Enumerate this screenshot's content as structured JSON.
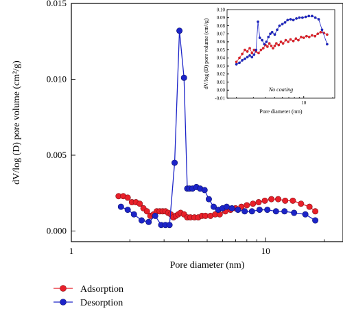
{
  "chart_data": [
    {
      "type": "line",
      "x_scale": "log",
      "xlabel": "Pore diameter (nm)",
      "ylabel": "dV/log (D) pore volume (cm²/g)",
      "xlim": [
        1,
        25
      ],
      "ylim": [
        -0.0007,
        0.015
      ],
      "x_ticks": [
        1,
        10
      ],
      "x_tick_labels": [
        "1",
        "10"
      ],
      "y_ticks": [
        0.0,
        0.005,
        0.01,
        0.015
      ],
      "y_tick_labels": [
        "0.000",
        "0.005",
        "0.010",
        "0.015"
      ],
      "legend_position": "bottom-left",
      "series": [
        {
          "name": "Adsorption",
          "color": "#e8202a",
          "x": [
            1.75,
            1.85,
            1.95,
            2.05,
            2.15,
            2.25,
            2.35,
            2.45,
            2.55,
            2.65,
            2.75,
            2.85,
            2.95,
            3.05,
            3.15,
            3.25,
            3.35,
            3.45,
            3.55,
            3.65,
            3.8,
            3.95,
            4.1,
            4.3,
            4.5,
            4.7,
            4.9,
            5.2,
            5.5,
            5.8,
            6.2,
            6.6,
            7.0,
            7.5,
            8.0,
            8.6,
            9.2,
            9.9,
            10.7,
            11.6,
            12.6,
            13.8,
            15.2,
            16.8,
            18.0
          ],
          "y": [
            0.0023,
            0.0023,
            0.0022,
            0.0019,
            0.0019,
            0.0018,
            0.0015,
            0.0013,
            0.001,
            0.0011,
            0.0013,
            0.0013,
            0.0013,
            0.0013,
            0.0012,
            0.0011,
            0.0009,
            0.001,
            0.0011,
            0.0012,
            0.0011,
            0.0009,
            0.0009,
            0.0009,
            0.0009,
            0.001,
            0.001,
            0.001,
            0.0011,
            0.0011,
            0.0013,
            0.0014,
            0.0015,
            0.0016,
            0.0017,
            0.0018,
            0.0019,
            0.002,
            0.0021,
            0.0021,
            0.002,
            0.002,
            0.0018,
            0.0016,
            0.0013
          ]
        },
        {
          "name": "Desorption",
          "color": "#1c24c8",
          "x": [
            1.8,
            1.95,
            2.1,
            2.3,
            2.5,
            2.7,
            2.9,
            3.05,
            3.2,
            3.4,
            3.6,
            3.8,
            3.95,
            4.05,
            4.2,
            4.4,
            4.6,
            4.85,
            5.1,
            5.4,
            5.7,
            6.0,
            6.3,
            6.7,
            7.2,
            7.8,
            8.5,
            9.3,
            10.2,
            11.3,
            12.5,
            14.0,
            16.0,
            18.0
          ],
          "y": [
            0.0016,
            0.0014,
            0.0011,
            0.0007,
            0.0006,
            0.001,
            0.0004,
            0.0004,
            0.0004,
            0.0045,
            0.0132,
            0.0101,
            0.0028,
            0.0028,
            0.0028,
            0.0029,
            0.0028,
            0.0027,
            0.0021,
            0.0016,
            0.0014,
            0.0015,
            0.0016,
            0.0015,
            0.0014,
            0.0013,
            0.0013,
            0.0014,
            0.0014,
            0.0013,
            0.0013,
            0.0012,
            0.0011,
            0.0007
          ]
        }
      ]
    },
    {
      "type": "line",
      "x_scale": "log",
      "xlabel": "Pore diameter (nm)",
      "ylabel": "dV/log (D) pore volume (cm³/g)",
      "annotation": "No coating",
      "xlim": [
        1.6,
        21
      ],
      "ylim": [
        -0.01,
        0.1
      ],
      "x_ticks": [
        10
      ],
      "x_tick_labels": [
        "10"
      ],
      "y_ticks": [
        -0.01,
        0.0,
        0.01,
        0.02,
        0.03,
        0.04,
        0.05,
        0.06,
        0.07,
        0.08,
        0.09,
        0.1
      ],
      "y_tick_labels": [
        "-0.01",
        "0.00",
        "0.01",
        "0.02",
        "0.03",
        "0.04",
        "0.05",
        "0.06",
        "0.07",
        "0.08",
        "0.09",
        "0.10"
      ],
      "series": [
        {
          "name": "Adsorption",
          "color": "#e8202a",
          "x": [
            2.0,
            2.15,
            2.3,
            2.45,
            2.6,
            2.75,
            2.9,
            3.05,
            3.2,
            3.4,
            3.6,
            3.8,
            4.0,
            4.2,
            4.4,
            4.6,
            4.8,
            5.0,
            5.2,
            5.5,
            5.8,
            6.1,
            6.5,
            6.9,
            7.3,
            7.8,
            8.3,
            8.8,
            9.4,
            10.0,
            10.7,
            11.4,
            12.2,
            13.1,
            14.0,
            15.0,
            16.2,
            17.5
          ],
          "y": [
            0.035,
            0.04,
            0.045,
            0.05,
            0.048,
            0.052,
            0.046,
            0.05,
            0.048,
            0.046,
            0.05,
            0.052,
            0.056,
            0.054,
            0.058,
            0.055,
            0.052,
            0.055,
            0.058,
            0.056,
            0.06,
            0.058,
            0.062,
            0.06,
            0.063,
            0.061,
            0.064,
            0.062,
            0.066,
            0.065,
            0.067,
            0.066,
            0.068,
            0.067,
            0.07,
            0.072,
            0.071,
            0.069
          ]
        },
        {
          "name": "Desorption",
          "color": "#1c24c8",
          "x": [
            2.0,
            2.15,
            2.3,
            2.45,
            2.6,
            2.75,
            2.9,
            3.05,
            3.2,
            3.35,
            3.5,
            3.7,
            3.9,
            4.1,
            4.3,
            4.5,
            4.7,
            5.0,
            5.3,
            5.6,
            6.0,
            6.4,
            6.8,
            7.3,
            7.8,
            8.4,
            9.0,
            9.7,
            10.5,
            11.3,
            12.2,
            13.2,
            14.3,
            15.5,
            17.5
          ],
          "y": [
            0.032,
            0.034,
            0.037,
            0.039,
            0.041,
            0.043,
            0.041,
            0.044,
            0.05,
            0.085,
            0.065,
            0.062,
            0.057,
            0.06,
            0.066,
            0.07,
            0.072,
            0.069,
            0.075,
            0.08,
            0.082,
            0.084,
            0.087,
            0.088,
            0.087,
            0.089,
            0.09,
            0.09,
            0.091,
            0.092,
            0.092,
            0.09,
            0.088,
            0.075,
            0.057
          ]
        }
      ]
    }
  ],
  "legend": {
    "items": [
      {
        "label": "Adsorption",
        "color": "#e8202a"
      },
      {
        "label": "Desorption",
        "color": "#1c24c8"
      }
    ]
  }
}
